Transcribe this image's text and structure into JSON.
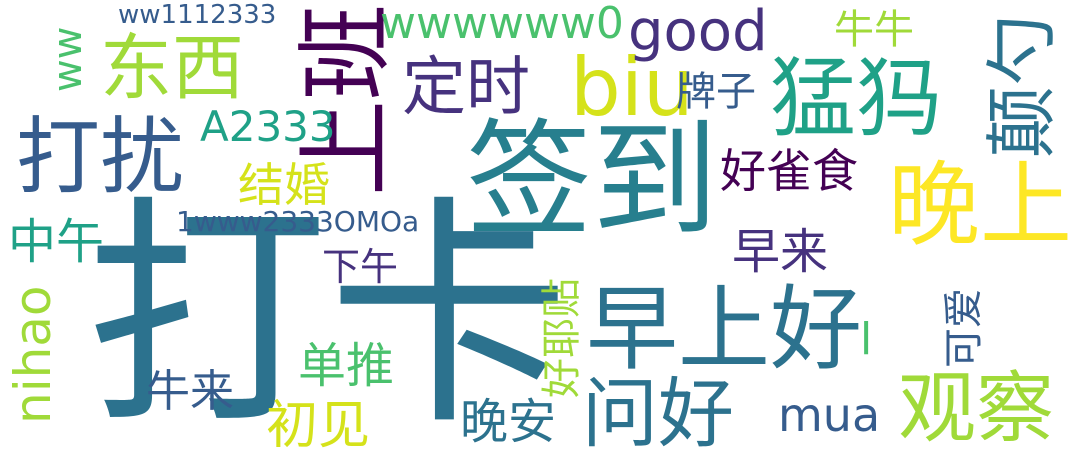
{
  "word_cloud": {
    "words": [
      {
        "text": "打卡",
        "color": "#2c728e"
      },
      {
        "text": "签到",
        "color": "#277f8e"
      },
      {
        "text": "早上好",
        "color": "#2c728e"
      },
      {
        "text": "上班",
        "color": "#440154"
      },
      {
        "text": "打扰",
        "color": "#365c8d"
      },
      {
        "text": "猛犸",
        "color": "#1fa187"
      },
      {
        "text": "晚上",
        "color": "#fde725"
      },
      {
        "text": "观察",
        "color": "#a0da39"
      },
      {
        "text": "问好",
        "color": "#2c728e"
      },
      {
        "text": "东西",
        "color": "#a0da39"
      },
      {
        "text": "定时",
        "color": "#46327e"
      },
      {
        "text": "biu",
        "color": "#d5e21a"
      },
      {
        "text": "颠勺",
        "color": "#2c728e"
      },
      {
        "text": "good",
        "color": "#46327e"
      },
      {
        "text": "wwwwww0",
        "color": "#4ac16d"
      },
      {
        "text": "ww1112333",
        "color": "#365c8d"
      },
      {
        "text": "ww",
        "color": "#4ac16d"
      },
      {
        "text": "牛牛",
        "color": "#a0da39"
      },
      {
        "text": "牌子",
        "color": "#365c8d"
      },
      {
        "text": "A2333",
        "color": "#1fa187"
      },
      {
        "text": "好雀食",
        "color": "#440154"
      },
      {
        "text": "结婚",
        "color": "#d5e21a"
      },
      {
        "text": "中午",
        "color": "#1fa187"
      },
      {
        "text": "1www2333OMOa",
        "color": "#365c8d"
      },
      {
        "text": "早来",
        "color": "#46327e"
      },
      {
        "text": "下午",
        "color": "#46327e"
      },
      {
        "text": "可爱",
        "color": "#365c8d"
      },
      {
        "text": "好耶贴",
        "color": "#a0da39"
      },
      {
        "text": "nihao",
        "color": "#a0da39"
      },
      {
        "text": "单推",
        "color": "#4ac16d"
      },
      {
        "text": "牛来",
        "color": "#365c8d"
      },
      {
        "text": "初见",
        "color": "#d5e21a"
      },
      {
        "text": "晚安",
        "color": "#2c728e"
      },
      {
        "text": "mua",
        "color": "#365c8d"
      },
      {
        "text": "l",
        "color": "#4ac16d"
      }
    ]
  }
}
